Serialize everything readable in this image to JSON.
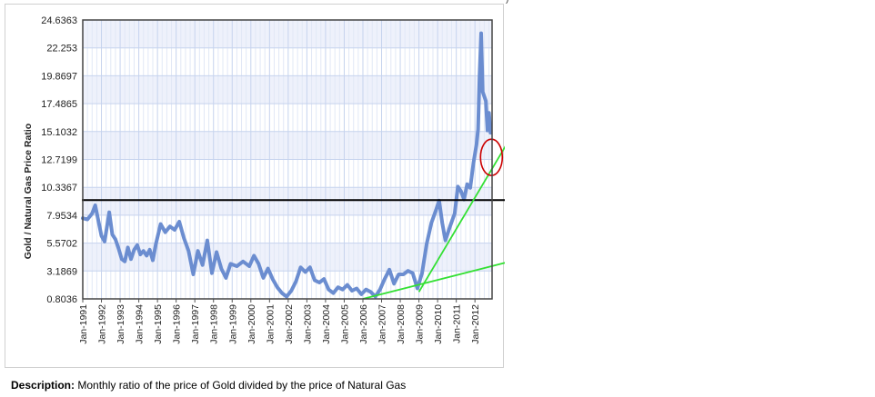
{
  "chart_data": {
    "type": "line",
    "title": "",
    "xlabel": "",
    "ylabel": "Gold / Natural Gas Price Ratio",
    "ylim": [
      0.8036,
      24.6363
    ],
    "xlim": [
      "1991-01",
      "2012-12"
    ],
    "y_ticks": [
      "0.8036",
      "3.1869",
      "5.5702",
      "7.9534",
      "10.3367",
      "12.7199",
      "15.1032",
      "17.4865",
      "19.8697",
      "22.253",
      "24.6363"
    ],
    "x_ticks": [
      "Jan-1991",
      "Jan-1992",
      "Jan-1993",
      "Jan-1994",
      "Jan-1995",
      "Jan-1996",
      "Jan-1997",
      "Jan-1998",
      "Jan-1999",
      "Jan-2000",
      "Jan-2001",
      "Jan-2002",
      "Jan-2003",
      "Jan-2004",
      "Jan-2005",
      "Jan-2006",
      "Jan-2007",
      "Jan-2008",
      "Jan-2009",
      "Jan-2010",
      "Jan-2011",
      "Jan-2012"
    ],
    "grid": true,
    "series": [
      {
        "color": "#6b8dd0",
        "points": [
          [
            "1991-01",
            7.7
          ],
          [
            "1991-04",
            7.6
          ],
          [
            "1991-07",
            8.1
          ],
          [
            "1991-09",
            8.8
          ],
          [
            "1991-11",
            7.5
          ],
          [
            "1992-01",
            6.2
          ],
          [
            "1992-03",
            5.7
          ],
          [
            "1992-06",
            8.2
          ],
          [
            "1992-08",
            6.3
          ],
          [
            "1992-10",
            5.9
          ],
          [
            "1992-12",
            5.1
          ],
          [
            "1993-02",
            4.2
          ],
          [
            "1993-04",
            4.0
          ],
          [
            "1993-06",
            5.2
          ],
          [
            "1993-08",
            4.2
          ],
          [
            "1993-10",
            5.0
          ],
          [
            "1993-12",
            5.4
          ],
          [
            "1994-02",
            4.6
          ],
          [
            "1994-04",
            4.9
          ],
          [
            "1994-06",
            4.5
          ],
          [
            "1994-08",
            5.0
          ],
          [
            "1994-10",
            4.1
          ],
          [
            "1994-12",
            5.5
          ],
          [
            "1995-03",
            7.2
          ],
          [
            "1995-06",
            6.5
          ],
          [
            "1995-09",
            7.0
          ],
          [
            "1995-12",
            6.7
          ],
          [
            "1996-03",
            7.4
          ],
          [
            "1996-06",
            6.0
          ],
          [
            "1996-09",
            4.9
          ],
          [
            "1996-12",
            2.9
          ],
          [
            "1997-03",
            4.9
          ],
          [
            "1997-06",
            3.7
          ],
          [
            "1997-09",
            5.8
          ],
          [
            "1997-12",
            3.0
          ],
          [
            "1998-03",
            4.8
          ],
          [
            "1998-06",
            3.4
          ],
          [
            "1998-09",
            2.6
          ],
          [
            "1998-12",
            3.8
          ],
          [
            "1999-04",
            3.6
          ],
          [
            "1999-08",
            4.0
          ],
          [
            "1999-12",
            3.6
          ],
          [
            "2000-03",
            4.5
          ],
          [
            "2000-06",
            3.8
          ],
          [
            "2000-09",
            2.6
          ],
          [
            "2000-12",
            3.4
          ],
          [
            "2001-03",
            2.5
          ],
          [
            "2001-06",
            1.8
          ],
          [
            "2001-09",
            1.3
          ],
          [
            "2001-12",
            1.0
          ],
          [
            "2002-03",
            1.5
          ],
          [
            "2002-06",
            2.3
          ],
          [
            "2002-09",
            3.5
          ],
          [
            "2002-12",
            3.1
          ],
          [
            "2003-03",
            3.5
          ],
          [
            "2003-06",
            2.4
          ],
          [
            "2003-09",
            2.2
          ],
          [
            "2003-12",
            2.5
          ],
          [
            "2004-03",
            1.6
          ],
          [
            "2004-06",
            1.3
          ],
          [
            "2004-09",
            1.8
          ],
          [
            "2004-12",
            1.6
          ],
          [
            "2005-03",
            2.0
          ],
          [
            "2005-06",
            1.5
          ],
          [
            "2005-09",
            1.7
          ],
          [
            "2005-12",
            1.2
          ],
          [
            "2006-03",
            1.6
          ],
          [
            "2006-06",
            1.4
          ],
          [
            "2006-09",
            1.0
          ],
          [
            "2006-12",
            1.6
          ],
          [
            "2007-03",
            2.5
          ],
          [
            "2007-06",
            3.3
          ],
          [
            "2007-09",
            2.1
          ],
          [
            "2007-12",
            2.9
          ],
          [
            "2008-03",
            2.9
          ],
          [
            "2008-06",
            3.2
          ],
          [
            "2008-09",
            3.0
          ],
          [
            "2008-12",
            1.7
          ],
          [
            "2009-03",
            3.0
          ],
          [
            "2009-06",
            5.5
          ],
          [
            "2009-09",
            7.3
          ],
          [
            "2009-12",
            8.4
          ],
          [
            "2010-02",
            9.2
          ],
          [
            "2010-04",
            7.3
          ],
          [
            "2010-06",
            5.8
          ],
          [
            "2010-09",
            7.0
          ],
          [
            "2010-12",
            8.1
          ],
          [
            "2011-02",
            10.4
          ],
          [
            "2011-04",
            10.0
          ],
          [
            "2011-06",
            9.3
          ],
          [
            "2011-08",
            10.6
          ],
          [
            "2011-10",
            10.3
          ],
          [
            "2011-12",
            12.4
          ],
          [
            "2012-02",
            14.0
          ],
          [
            "2012-03",
            15.3
          ],
          [
            "2012-04",
            20.0
          ],
          [
            "2012-05",
            23.5
          ],
          [
            "2012-06",
            18.5
          ],
          [
            "2012-08",
            17.7
          ],
          [
            "2012-09",
            15.2
          ],
          [
            "2012-10",
            16.7
          ],
          [
            "2012-11",
            15.0
          ]
        ]
      }
    ],
    "annotations": {
      "horizontal_line": {
        "y": 9.25,
        "color": "#000000"
      },
      "trend_lines": [
        {
          "color": "#33e033",
          "from": [
            "2006-01",
            0.8036
          ],
          "to": [
            "2013-12",
            4.1
          ]
        },
        {
          "color": "#33e033",
          "from": [
            "2009-01",
            1.4
          ],
          "to": [
            "2013-12",
            15.2
          ]
        }
      ],
      "highlight_ellipse": {
        "color": "#cc0000",
        "center": [
          "2012-11",
          12.9
        ]
      }
    }
  },
  "description": {
    "label": "Description:",
    "text": "Monthly ratio of the price of Gold divided by the price of Natural Gas"
  },
  "corner_mark": ")"
}
